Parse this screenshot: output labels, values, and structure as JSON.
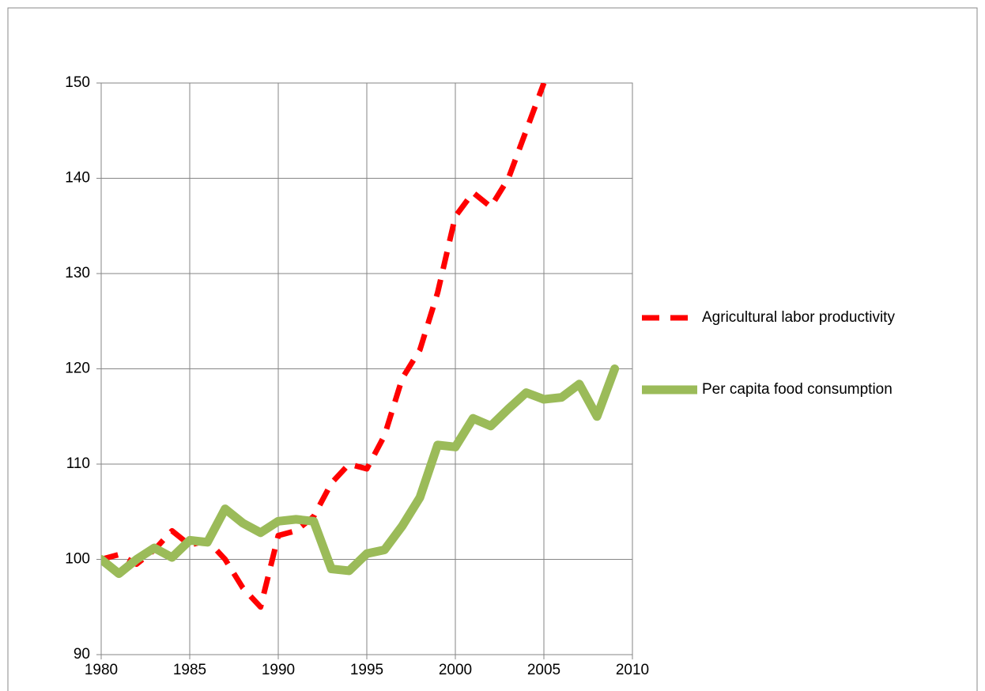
{
  "chart_data": {
    "type": "line",
    "x": [
      1980,
      1981,
      1982,
      1983,
      1984,
      1985,
      1986,
      1987,
      1988,
      1989,
      1990,
      1991,
      1992,
      1993,
      1994,
      1995,
      1996,
      1997,
      1998,
      1999,
      2000,
      2001,
      2002,
      2003,
      2004,
      2005,
      2006,
      2007,
      2008,
      2009
    ],
    "series": [
      {
        "name": "Agricultural labor productivity",
        "color": "#ff0000",
        "dashed": true,
        "values": [
          100,
          100.5,
          99.5,
          101,
          103,
          101.5,
          102,
          100,
          97,
          95,
          102.5,
          103,
          104.5,
          108,
          110,
          109.5,
          113,
          119,
          122,
          128,
          136,
          138.5,
          137,
          140,
          145,
          150,
          null,
          null,
          null,
          null
        ]
      },
      {
        "name": "Per capita food consumption",
        "color": "#9bbb59",
        "dashed": false,
        "values": [
          100,
          98.5,
          100,
          101.2,
          100.2,
          102,
          101.8,
          105.3,
          103.8,
          102.8,
          104,
          104.2,
          104,
          99,
          98.8,
          100.6,
          101,
          103.5,
          106.5,
          112,
          111.8,
          114.8,
          114,
          115.8,
          117.5,
          116.8,
          117,
          118.4,
          115,
          120
        ]
      }
    ],
    "xlim": [
      1980,
      2010
    ],
    "xticks": [
      1980,
      1985,
      1990,
      1995,
      2000,
      2005,
      2010
    ],
    "ylim": [
      90,
      150
    ],
    "yticks": [
      90,
      100,
      110,
      120,
      130,
      140,
      150
    ],
    "grid": true,
    "legend": "right"
  }
}
